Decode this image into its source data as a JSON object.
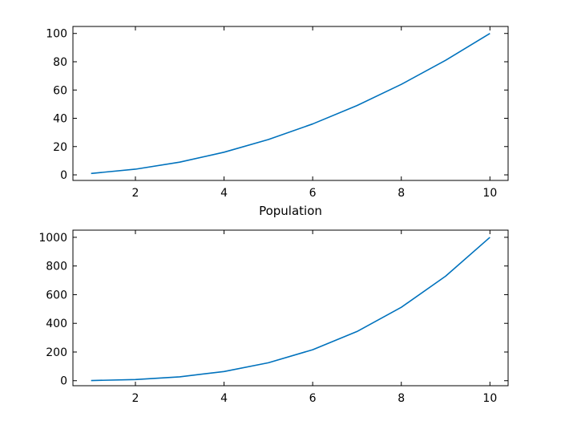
{
  "chart_data": [
    {
      "type": "line",
      "title": "",
      "xlabel": "Population",
      "ylabel": "",
      "xlim": [
        0.59,
        10.41
      ],
      "ylim": [
        -3.95,
        104.95
      ],
      "xticks": [
        2,
        4,
        6,
        8,
        10
      ],
      "yticks": [
        0,
        20,
        40,
        60,
        80,
        100
      ],
      "grid": false,
      "color": "#0072BD",
      "x": [
        1,
        2,
        3,
        4,
        5,
        6,
        7,
        8,
        9,
        10
      ],
      "y": [
        1,
        4,
        9,
        16,
        25,
        36,
        49,
        64,
        81,
        100
      ]
    },
    {
      "type": "line",
      "title": "",
      "xlabel": "",
      "ylabel": "",
      "xlim": [
        0.59,
        10.41
      ],
      "ylim": [
        -35,
        1050
      ],
      "xticks": [
        2,
        4,
        6,
        8,
        10
      ],
      "yticks": [
        0,
        200,
        400,
        600,
        800,
        1000
      ],
      "grid": false,
      "color": "#0072BD",
      "x": [
        1,
        2,
        3,
        4,
        5,
        6,
        7,
        8,
        9,
        10
      ],
      "y": [
        1,
        8,
        27,
        64,
        125,
        216,
        343,
        512,
        729,
        1000
      ]
    }
  ]
}
